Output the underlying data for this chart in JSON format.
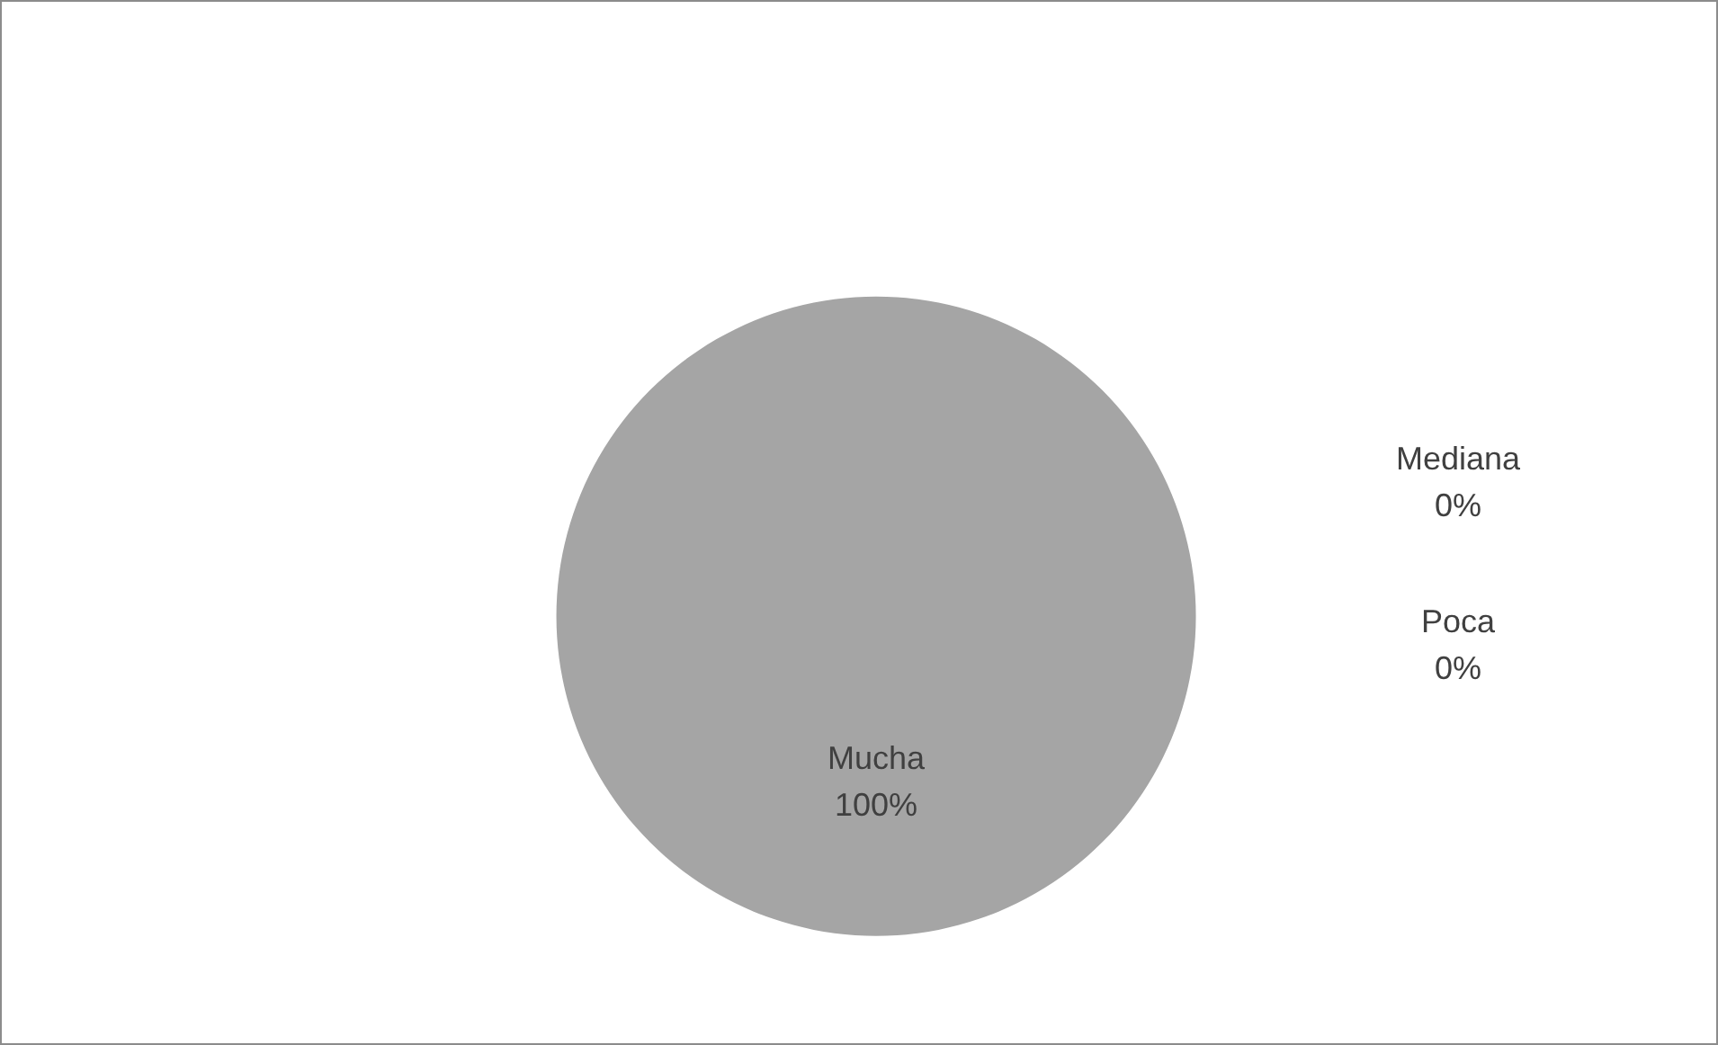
{
  "chart_data": {
    "type": "pie",
    "categories": [
      "Mucha",
      "Mediana",
      "Poca"
    ],
    "values": [
      100,
      0,
      0
    ],
    "colors": [
      "#a5a5a5",
      "#ed7d31",
      "#4472c4"
    ],
    "value_labels": [
      "100%",
      "0%",
      "0%"
    ],
    "legend": false
  }
}
